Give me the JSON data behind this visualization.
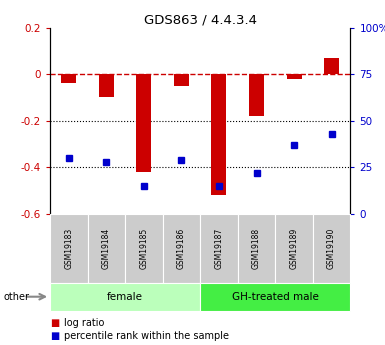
{
  "title": "GDS863 / 4.4.3.4",
  "samples": [
    "GSM19183",
    "GSM19184",
    "GSM19185",
    "GSM19186",
    "GSM19187",
    "GSM19188",
    "GSM19189",
    "GSM19190"
  ],
  "log_ratio": [
    -0.04,
    -0.1,
    -0.42,
    -0.05,
    -0.52,
    -0.18,
    -0.02,
    0.07
  ],
  "percentile_rank": [
    30,
    28,
    15,
    29,
    15,
    22,
    37,
    43
  ],
  "groups": [
    {
      "label": "female",
      "start": 0,
      "end": 3,
      "color": "#bbffbb"
    },
    {
      "label": "GH-treated male",
      "start": 4,
      "end": 7,
      "color": "#44ee44"
    }
  ],
  "bar_color": "#cc0000",
  "dot_color": "#0000cc",
  "ylim_left": [
    -0.6,
    0.2
  ],
  "ylim_right": [
    0,
    100
  ],
  "yticks_left": [
    -0.6,
    -0.4,
    -0.2,
    0.0,
    0.2
  ],
  "yticks_right": [
    0,
    25,
    50,
    75,
    100
  ],
  "ytick_labels_left": [
    "-0.6",
    "-0.4",
    "-0.2",
    "0",
    "0.2"
  ],
  "ytick_labels_right": [
    "0",
    "25",
    "50",
    "75",
    "100%"
  ],
  "hline_y": 0.0,
  "dotted_lines": [
    -0.2,
    -0.4
  ],
  "legend_log_ratio": "log ratio",
  "legend_percentile": "percentile rank within the sample",
  "other_label": "other",
  "bar_width": 0.4,
  "dot_size": 5
}
